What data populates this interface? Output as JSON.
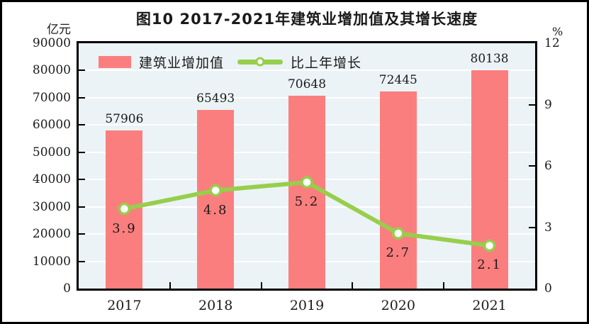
{
  "title": "图10  2017-2021年建筑业增加值及其增长速度",
  "left_axis": {
    "unit": "亿元",
    "tick_labels": [
      "90000",
      "80000",
      "70000",
      "60000",
      "50000",
      "40000",
      "30000",
      "20000",
      "10000",
      "0"
    ]
  },
  "right_axis": {
    "unit": "%",
    "tick_labels": [
      "12",
      "9",
      "6",
      "3",
      "0"
    ]
  },
  "legend": {
    "items": [
      {
        "label": "建筑业增加值",
        "marker": "bar-swatch"
      },
      {
        "label": "比上年增长",
        "marker": "line-swatch"
      }
    ]
  },
  "chart_data": {
    "type": "bar+line",
    "categories": [
      "2017",
      "2018",
      "2019",
      "2020",
      "2021"
    ],
    "series": [
      {
        "name": "建筑业增加值",
        "type": "bar",
        "axis": "left",
        "unit": "亿元",
        "values": [
          57906,
          65493,
          70648,
          72445,
          80138
        ],
        "labels": [
          "57906",
          "65493",
          "70648",
          "72445",
          "80138"
        ]
      },
      {
        "name": "比上年增长",
        "type": "line",
        "axis": "right",
        "unit": "%",
        "values": [
          3.9,
          4.8,
          5.2,
          2.7,
          2.1
        ],
        "labels": [
          "3.9",
          "4.8",
          "5.2",
          "2.7",
          "2.1"
        ]
      }
    ],
    "left_ylim": [
      0,
      90000
    ],
    "left_step": 10000,
    "right_ylim": [
      0,
      12
    ],
    "right_step": 3,
    "grid": "horizontal-white-on",
    "legend_position": "top-left-inside",
    "title": "图10  2017-2021年建筑业增加值及其增长速度"
  },
  "colors": {
    "bar": "#FB7E7E",
    "line": "#97CE4C",
    "marker_fill": "#FFFFFF",
    "plot_bg": "#EBF3F6",
    "gridline": "#FFFFFF",
    "border": "#000000",
    "text": "#1A1A1A"
  }
}
